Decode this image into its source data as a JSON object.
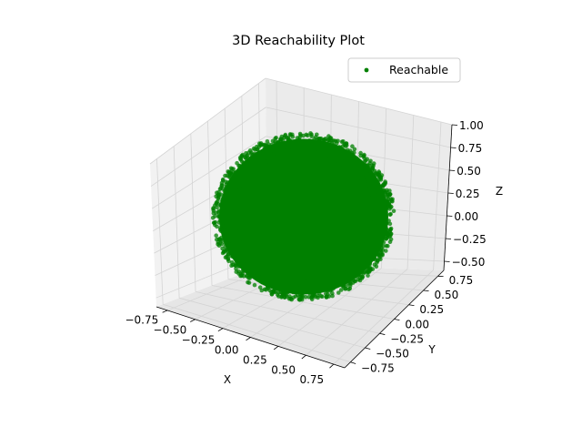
{
  "chart_data": {
    "type": "scatter",
    "projection": "3d",
    "title": "3D Reachability Plot",
    "xlabel": "X",
    "ylabel": "Y",
    "zlabel": "Z",
    "x_ticks": [
      "−0.75",
      "−0.50",
      "−0.25",
      "0.00",
      "0.25",
      "0.50",
      "0.75"
    ],
    "y_ticks": [
      "−0.75",
      "−0.50",
      "−0.25",
      "0.00",
      "0.25",
      "0.50",
      "0.75"
    ],
    "z_ticks": [
      "−0.50",
      "−0.25",
      "0.00",
      "0.25",
      "0.50",
      "0.75",
      "1.00"
    ],
    "xlim": [
      -0.85,
      0.85
    ],
    "ylim": [
      -0.85,
      0.85
    ],
    "zlim": [
      -0.6,
      1.0
    ],
    "grid": true,
    "legend_position": "top-right",
    "series": [
      {
        "name": "Reachable",
        "color": "#008000",
        "marker": "circle",
        "distribution": "points filling a sphere",
        "center": [
          0,
          0,
          0.2
        ],
        "radius": 0.75
      }
    ]
  }
}
